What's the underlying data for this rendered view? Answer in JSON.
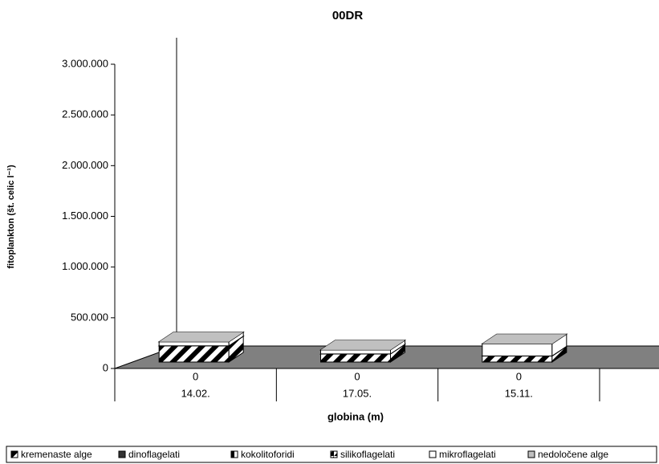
{
  "chart_data": {
    "type": "bar3d-stacked",
    "title": "00DR",
    "xlabel": "globina (m)",
    "ylabel": "fitoplankton (št. celic l⁻¹)",
    "categories": [
      "0",
      "0",
      "0"
    ],
    "group_labels": [
      "14.02.",
      "17.05.",
      "15.11."
    ],
    "series": [
      {
        "name": "kremenaste alge",
        "color": "#000000",
        "pattern": "hatch",
        "values": [
          160000,
          80000,
          60000
        ]
      },
      {
        "name": "dinoflagelati",
        "color": "#333333",
        "values": [
          0,
          0,
          0
        ]
      },
      {
        "name": "kokolitoforidi",
        "color": "#000000",
        "pattern": "half",
        "values": [
          0,
          0,
          0
        ]
      },
      {
        "name": "silikoflagelati",
        "color": "#000000",
        "pattern": "diagonal-half",
        "values": [
          0,
          0,
          0
        ]
      },
      {
        "name": "mikroflagelati",
        "color": "#ffffff",
        "values": [
          40000,
          40000,
          120000
        ]
      },
      {
        "name": "nedoločene alge",
        "color": "#c0c0c0",
        "values": [
          0,
          0,
          0
        ]
      }
    ],
    "ylim": [
      0,
      3000000
    ],
    "yticks": [
      {
        "value": 0,
        "label": "0"
      },
      {
        "value": 500000,
        "label": "500.000"
      },
      {
        "value": 1000000,
        "label": "1.000.000"
      },
      {
        "value": 1500000,
        "label": "1.500.000"
      },
      {
        "value": 2000000,
        "label": "2.000.000"
      },
      {
        "value": 2500000,
        "label": "2.500.000"
      },
      {
        "value": 3000000,
        "label": "3.000.000"
      }
    ],
    "legend": "bottom"
  }
}
